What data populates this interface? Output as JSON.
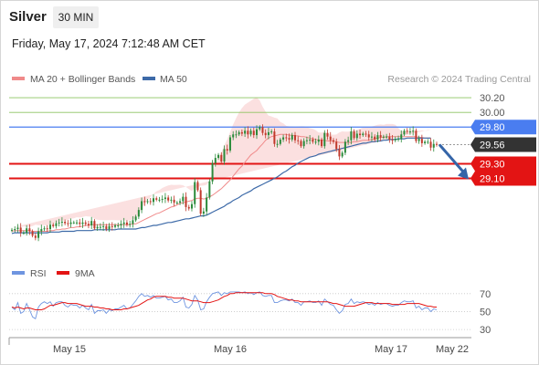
{
  "header": {
    "instrument": "Silver",
    "interval": "30 MIN",
    "datetime": "Friday, May 17, 2024 7:12:48 AM CET"
  },
  "legend": {
    "ma20_label": "MA 20 + Bollinger Bands",
    "ma50_label": "MA 50",
    "credit": "Research © 2024 Trading Central",
    "rsi_label": "RSI",
    "rsi_ma_label": "9MA"
  },
  "colors": {
    "ma20": "#f08a8a",
    "ma50": "#3d6aa8",
    "bands_fill": "#fadada",
    "bullish": "#2a8a3a",
    "bearish": "#c0392b",
    "resistance": "#8cc460",
    "pivot": "#4a7df0",
    "support": "#e31414",
    "current": "#333333",
    "arrow": "#3565a8",
    "rsi": "#6f95e0",
    "rsi_ma": "#e31414"
  },
  "chart_data": [
    {
      "type": "candlestick",
      "title": "Silver",
      "interval": "30 MIN",
      "x_ticks": [
        "May 15",
        "May 16",
        "May 17",
        "May 22"
      ],
      "ylim": [
        28.05,
        30.35
      ],
      "levels": [
        {
          "label": "30.20",
          "value": 30.2,
          "kind": "resistance"
        },
        {
          "label": "30.00",
          "value": 30.0,
          "kind": "resistance"
        },
        {
          "label": "29.80",
          "value": 29.8,
          "kind": "pivot"
        },
        {
          "label": "29.56",
          "value": 29.56,
          "kind": "current"
        },
        {
          "label": "29.30",
          "value": 29.3,
          "kind": "support"
        },
        {
          "label": "29.10",
          "value": 29.1,
          "kind": "support"
        }
      ],
      "arrow": {
        "from_value": 29.56,
        "to_value": 29.1,
        "direction": "down"
      },
      "close": [
        28.4,
        28.41,
        28.43,
        28.36,
        28.36,
        28.42,
        28.38,
        28.32,
        28.29,
        28.38,
        28.41,
        28.42,
        28.41,
        28.47,
        28.45,
        28.49,
        28.5,
        28.51,
        28.49,
        28.48,
        28.5,
        28.5,
        28.5,
        28.48,
        28.5,
        28.48,
        28.46,
        28.52,
        28.42,
        28.44,
        28.44,
        28.45,
        28.41,
        28.45,
        28.44,
        28.46,
        28.46,
        28.48,
        28.5,
        28.47,
        28.48,
        28.53,
        28.58,
        28.67,
        28.79,
        28.78,
        28.79,
        28.78,
        28.83,
        28.81,
        28.81,
        28.82,
        28.84,
        28.8,
        28.81,
        28.77,
        28.77,
        28.79,
        28.85,
        28.71,
        28.69,
        28.75,
        29.05,
        28.94,
        28.62,
        28.65,
        28.84,
        29.06,
        29.31,
        29.38,
        29.42,
        29.33,
        29.5,
        29.48,
        29.66,
        29.7,
        29.7,
        29.73,
        29.71,
        29.75,
        29.7,
        29.75,
        29.69,
        29.77,
        29.8,
        29.72,
        29.69,
        29.73,
        29.74,
        29.57,
        29.57,
        29.63,
        29.66,
        29.65,
        29.63,
        29.69,
        29.62,
        29.61,
        29.54,
        29.61,
        29.62,
        29.63,
        29.6,
        29.6,
        29.63,
        29.54,
        29.72,
        29.67,
        29.62,
        29.6,
        29.5,
        29.4,
        29.45,
        29.6,
        29.62,
        29.74,
        29.65,
        29.71,
        29.69,
        29.71,
        29.7,
        29.66,
        29.67,
        29.63,
        29.69,
        29.66,
        29.67,
        29.67,
        29.63,
        29.62,
        29.64,
        29.64,
        29.7,
        29.75,
        29.74,
        29.74,
        29.75,
        29.61,
        29.64,
        29.58,
        29.6,
        29.6,
        29.52,
        29.57,
        29.56
      ],
      "series": [
        {
          "name": "MA 20",
          "values": [
            28.38,
            28.39,
            28.39,
            28.39,
            28.39,
            28.39,
            28.39,
            28.38,
            28.38,
            28.38,
            28.38,
            28.38,
            28.38,
            28.39,
            28.39,
            28.4,
            28.4,
            28.41,
            28.41,
            28.42,
            28.43,
            28.43,
            28.44,
            28.44,
            28.45,
            28.46,
            28.46,
            28.47,
            28.47,
            28.47,
            28.47,
            28.47,
            28.47,
            28.47,
            28.47,
            28.47,
            28.47,
            28.47,
            28.47,
            28.47,
            28.47,
            28.48,
            28.48,
            28.5,
            28.52,
            28.54,
            28.56,
            28.58,
            28.6,
            28.62,
            28.63,
            28.65,
            28.67,
            28.69,
            28.71,
            28.72,
            28.74,
            28.76,
            28.77,
            28.78,
            28.79,
            28.8,
            28.82,
            28.83,
            28.83,
            28.82,
            28.83,
            28.85,
            28.87,
            28.9,
            28.93,
            28.96,
            29.0,
            29.04,
            29.08,
            29.13,
            29.18,
            29.23,
            29.27,
            29.32,
            29.37,
            29.42,
            29.45,
            29.48,
            29.53,
            29.57,
            29.62,
            29.65,
            29.67,
            29.68,
            29.69,
            29.7,
            29.7,
            29.7,
            29.69,
            29.69,
            29.68,
            29.68,
            29.67,
            29.67,
            29.66,
            29.65,
            29.64,
            29.63,
            29.62,
            29.62,
            29.62,
            29.61,
            29.61,
            29.61,
            29.6,
            29.59,
            29.59,
            29.59,
            29.59,
            29.59,
            29.6,
            29.6,
            29.61,
            29.62,
            29.62,
            29.62,
            29.63,
            29.64,
            29.65,
            29.66,
            29.66,
            29.67,
            29.67,
            29.67,
            29.67,
            29.67,
            29.67,
            29.67,
            29.67,
            29.67,
            29.67,
            29.67,
            29.66,
            29.66,
            29.65,
            29.65,
            29.65
          ]
        },
        {
          "name": "MA 50",
          "values": [
            28.35,
            28.36,
            28.36,
            28.36,
            28.36,
            28.36,
            28.36,
            28.36,
            28.36,
            28.36,
            28.36,
            28.36,
            28.36,
            28.37,
            28.37,
            28.37,
            28.37,
            28.38,
            28.38,
            28.38,
            28.38,
            28.38,
            28.39,
            28.39,
            28.39,
            28.39,
            28.39,
            28.39,
            28.4,
            28.4,
            28.4,
            28.4,
            28.4,
            28.4,
            28.4,
            28.4,
            28.41,
            28.41,
            28.41,
            28.41,
            28.41,
            28.41,
            28.41,
            28.42,
            28.43,
            28.43,
            28.44,
            28.45,
            28.46,
            28.46,
            28.47,
            28.48,
            28.49,
            28.5,
            28.5,
            28.51,
            28.52,
            28.53,
            28.54,
            28.55,
            28.55,
            28.56,
            28.57,
            28.58,
            28.59,
            28.59,
            28.6,
            28.62,
            28.64,
            28.66,
            28.68,
            28.7,
            28.72,
            28.75,
            28.77,
            28.8,
            28.82,
            28.84,
            28.87,
            28.89,
            28.91,
            28.93,
            28.96,
            28.98,
            29.0,
            29.02,
            29.04,
            29.06,
            29.08,
            29.1,
            29.12,
            29.15,
            29.18,
            29.2,
            29.23,
            29.26,
            29.28,
            29.31,
            29.33,
            29.35,
            29.37,
            29.39,
            29.4,
            29.41,
            29.43,
            29.44,
            29.45,
            29.46,
            29.47,
            29.48,
            29.49,
            29.5,
            29.51,
            29.52,
            29.53,
            29.54,
            29.55,
            29.56,
            29.57,
            29.58,
            29.58,
            29.59,
            29.6,
            29.6,
            29.61,
            29.61,
            29.62,
            29.62,
            29.63,
            29.63,
            29.63,
            29.64,
            29.64,
            29.64,
            29.65,
            29.65,
            29.65,
            29.65,
            29.65,
            29.65,
            29.65,
            29.65,
            29.65
          ]
        }
      ]
    },
    {
      "type": "line",
      "ylim": [
        25,
        80
      ],
      "y_ticks": [
        30,
        50,
        70
      ],
      "series": [
        {
          "name": "RSI",
          "values": [
            55,
            52,
            60,
            48,
            50,
            59,
            52,
            44,
            42,
            55,
            59,
            61,
            59,
            61,
            56,
            60,
            61,
            61,
            57,
            55,
            58,
            57,
            57,
            54,
            57,
            54,
            52,
            58,
            48,
            51,
            51,
            52,
            48,
            52,
            51,
            53,
            53,
            55,
            57,
            53,
            54,
            58,
            62,
            67,
            70,
            67,
            68,
            66,
            68,
            65,
            65,
            66,
            67,
            63,
            64,
            60,
            60,
            62,
            66,
            55,
            54,
            58,
            68,
            63,
            52,
            53,
            61,
            66,
            70,
            71,
            72,
            68,
            71,
            70,
            72,
            72,
            72,
            72,
            71,
            72,
            70,
            71,
            69,
            71,
            72,
            68,
            67,
            68,
            68,
            60,
            60,
            62,
            63,
            63,
            62,
            64,
            60,
            60,
            57,
            61,
            61,
            62,
            60,
            60,
            62,
            57,
            64,
            61,
            58,
            57,
            52,
            48,
            51,
            58,
            59,
            64,
            59,
            61,
            60,
            61,
            60,
            58,
            59,
            57,
            60,
            58,
            59,
            59,
            57,
            56,
            57,
            57,
            60,
            62,
            61,
            61,
            62,
            54,
            56,
            52,
            54,
            54,
            50,
            53,
            52
          ]
        },
        {
          "name": "9MA",
          "values": [
            55,
            54,
            55,
            54,
            53,
            54,
            54,
            53,
            52,
            52,
            52,
            53,
            55,
            57,
            57,
            58,
            59,
            60,
            60,
            59,
            59,
            59,
            59,
            58,
            57,
            56,
            56,
            56,
            55,
            55,
            54,
            54,
            53,
            53,
            52,
            52,
            52,
            52,
            53,
            53,
            54,
            55,
            56,
            57,
            59,
            61,
            63,
            64,
            66,
            67,
            67,
            67,
            67,
            66,
            66,
            65,
            65,
            65,
            65,
            64,
            63,
            62,
            62,
            62,
            61,
            60,
            60,
            60,
            61,
            62,
            63,
            65,
            67,
            68,
            70,
            70,
            71,
            71,
            71,
            71,
            71,
            71,
            71,
            71,
            71,
            71,
            70,
            70,
            70,
            69,
            67,
            66,
            65,
            64,
            63,
            63,
            62,
            62,
            61,
            61,
            61,
            61,
            61,
            61,
            61,
            61,
            61,
            61,
            60,
            59,
            59,
            58,
            57,
            56,
            56,
            56,
            56,
            57,
            58,
            59,
            60,
            60,
            60,
            59,
            59,
            59,
            59,
            59,
            59,
            58,
            58,
            58,
            58,
            58,
            59,
            59,
            59,
            59,
            59,
            58,
            57,
            56,
            56,
            55,
            55
          ]
        }
      ]
    }
  ]
}
